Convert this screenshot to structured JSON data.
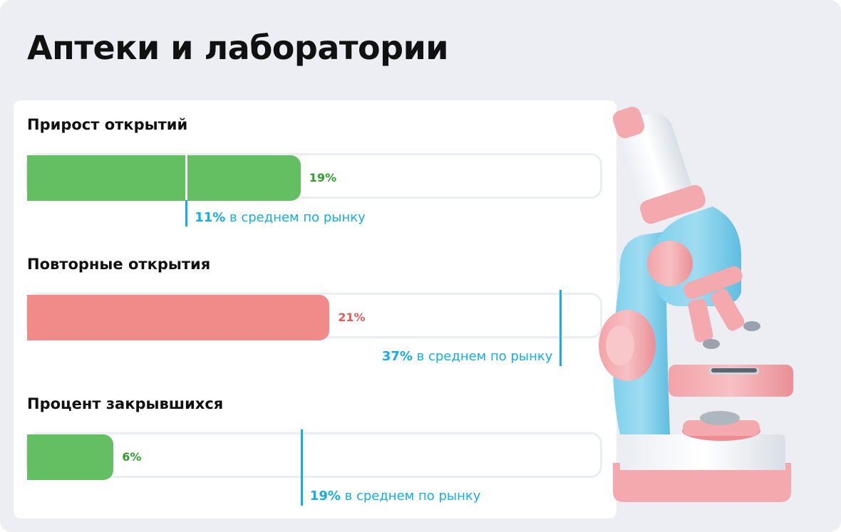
{
  "page": {
    "title": "Аптеки и лаборатории"
  },
  "colors": {
    "good": "#63bf62",
    "good_text": "#2da12b",
    "bad": "#f08b8a",
    "bad_text": "#e75b5a",
    "market": "#12aee8"
  },
  "market_suffix": "в среднем по рынку",
  "chart_data": [
    {
      "type": "bar",
      "title": "Прирост открытий",
      "value": 19,
      "value_label": "19%",
      "status": "good",
      "market": 11,
      "market_label": "11%",
      "xlim": [
        0,
        40
      ]
    },
    {
      "type": "bar",
      "title": "Повторные открытия",
      "value": 21,
      "value_label": "21%",
      "status": "bad",
      "market": 37,
      "market_label": "37%",
      "xlim": [
        0,
        40
      ]
    },
    {
      "type": "bar",
      "title": "Процент закрывшихся",
      "value": 6,
      "value_label": "6%",
      "status": "good",
      "market": 19,
      "market_label": "19%",
      "xlim": [
        0,
        40
      ]
    }
  ],
  "illustration": {
    "icon": "microscope-icon"
  }
}
